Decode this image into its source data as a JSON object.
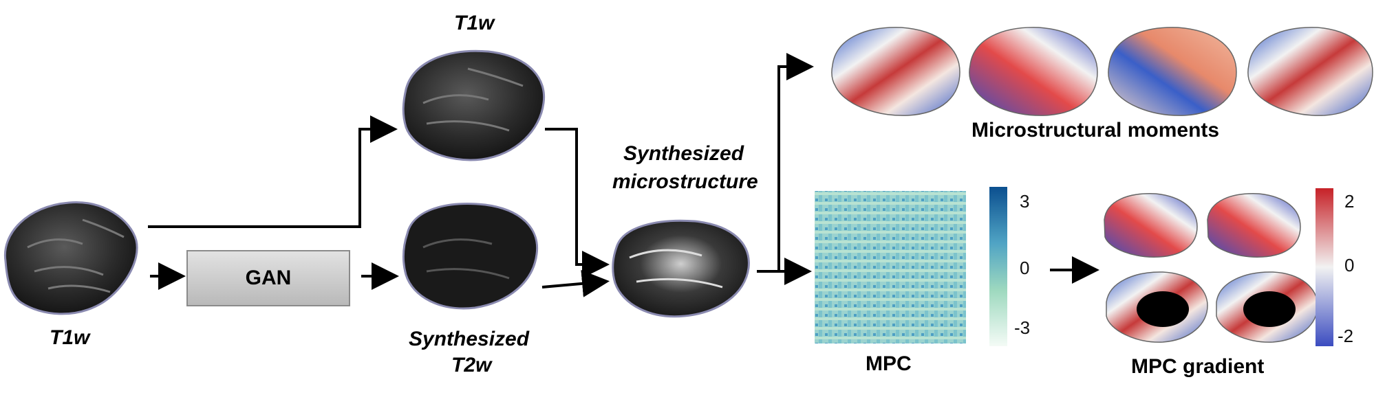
{
  "diagram": {
    "labels": {
      "t1w_input": "T1w",
      "t1w_top": "T1w",
      "synth_t2w_line1": "Synthesized",
      "synth_t2w_line2": "T2w",
      "synth_micro_line1": "Synthesized",
      "synth_micro_line2": "microstructure",
      "moments_title": "Microstructural moments",
      "mpc_title": "MPC",
      "gradient_title": "MPC gradient"
    },
    "gan_label": "GAN",
    "mpc_colorbar": {
      "ticks": [
        "3",
        "0",
        "-3"
      ],
      "colors": [
        "#0b4f8f",
        "#5fb0c8",
        "#9ed9bf",
        "#f4fbf6"
      ]
    },
    "gradient_colorbar": {
      "ticks": [
        "2",
        "0",
        "-2"
      ],
      "colors": [
        "#c62127",
        "#f2f2f2",
        "#3b4cc0"
      ]
    },
    "colors": {
      "brain_gray": "#2a2a2a",
      "arrow": "#000000",
      "mpc_base": "#9bd3cf"
    }
  }
}
